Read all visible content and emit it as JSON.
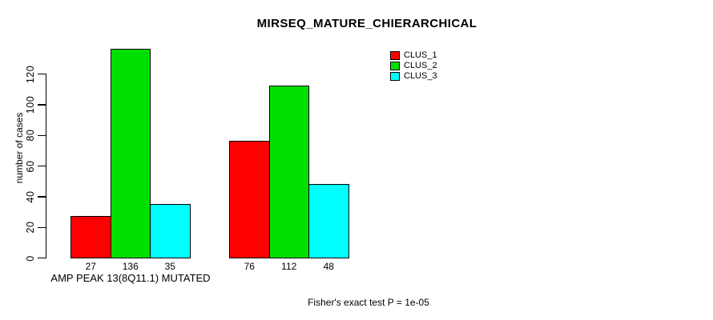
{
  "header": {
    "title": "MIRSEQ_MATURE_CHIERARCHICAL"
  },
  "footer": {
    "note": "Fisher's exact test P = 1e-05"
  },
  "legend": {
    "items": [
      {
        "label": "CLUS_1",
        "color": "#ff0000"
      },
      {
        "label": "CLUS_2",
        "color": "#00e000"
      },
      {
        "label": "CLUS_3",
        "color": "#00ffff"
      }
    ]
  },
  "chart_data": {
    "type": "bar",
    "title": "MIRSEQ_MATURE_CHIERARCHICAL",
    "xlabel": "AMP PEAK 13(8Q11.1) MUTATED",
    "ylabel": "number of cases",
    "ylim": [
      0,
      136
    ],
    "yticks": [
      0,
      20,
      40,
      60,
      80,
      100,
      120
    ],
    "grid": false,
    "legend_position": "top-right",
    "categories": [
      "AMP PEAK 13(8Q11.1) MUTATED",
      ""
    ],
    "series": [
      {
        "name": "CLUS_1",
        "color": "#ff0000",
        "values": [
          27,
          76
        ]
      },
      {
        "name": "CLUS_2",
        "color": "#00e000",
        "values": [
          136,
          112
        ]
      },
      {
        "name": "CLUS_3",
        "color": "#00ffff",
        "values": [
          35,
          48
        ]
      }
    ],
    "bar_value_labels": [
      [
        27,
        136,
        35
      ],
      [
        76,
        112,
        48
      ]
    ],
    "annotation": "Fisher's exact test P = 1e-05"
  }
}
